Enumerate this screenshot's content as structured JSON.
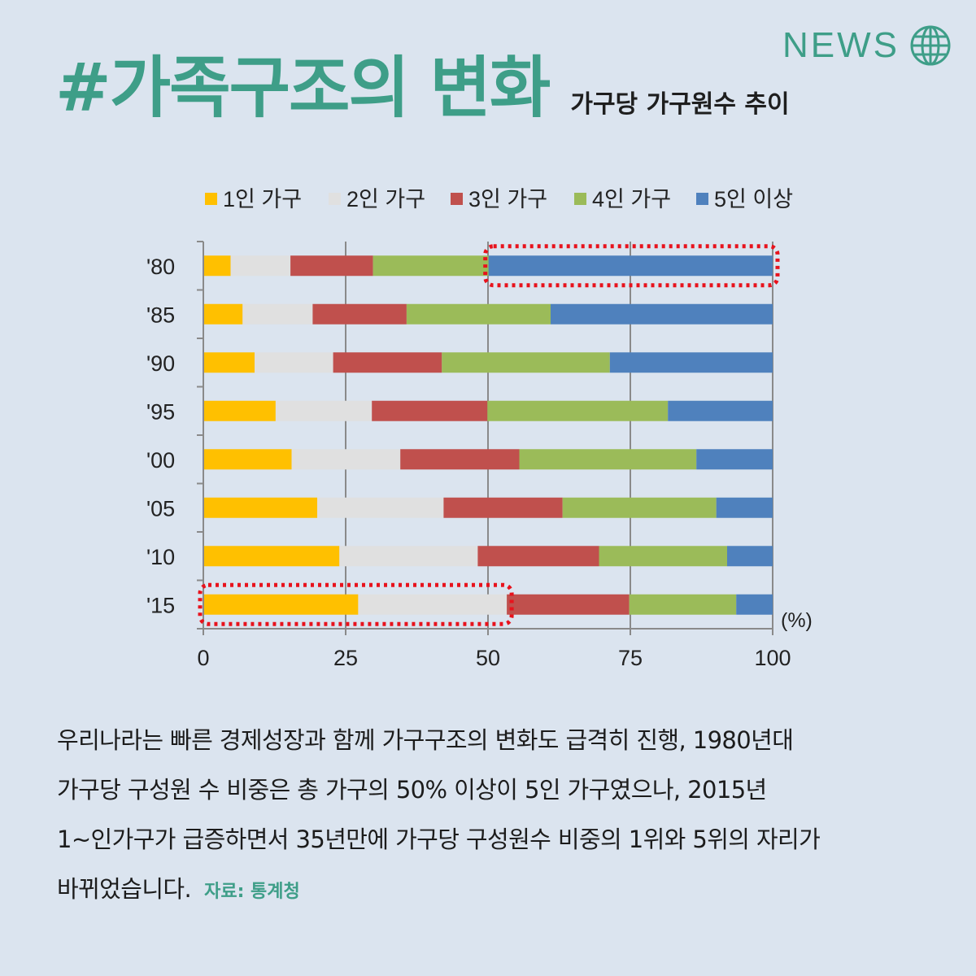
{
  "header": {
    "news_label": "NEWS",
    "news_icon": "globe-icon",
    "title": "#가족구조의 변화",
    "subtitle": "가구당 가구원수 추이"
  },
  "colors": {
    "accent": "#3e9e88",
    "background": "#dbe4ef",
    "highlight": "#e8121c"
  },
  "chart_data": {
    "type": "bar",
    "orientation": "horizontal",
    "stacked": true,
    "categories": [
      "'80",
      "'85",
      "'90",
      "'95",
      "'00",
      "'05",
      "'10",
      "'15"
    ],
    "series": [
      {
        "name": "1인 가구",
        "color": "#ffc000",
        "values": [
          4.8,
          6.9,
          9.0,
          12.7,
          15.5,
          20.0,
          23.9,
          27.2
        ]
      },
      {
        "name": "2인 가구",
        "color": "#e0e0e0",
        "values": [
          10.5,
          12.3,
          13.8,
          16.9,
          19.1,
          22.2,
          24.3,
          26.1
        ]
      },
      {
        "name": "3인 가구",
        "color": "#c0504d",
        "values": [
          14.5,
          16.5,
          19.1,
          20.3,
          20.9,
          20.9,
          21.3,
          21.5
        ]
      },
      {
        "name": "4인 가구",
        "color": "#9bbb59",
        "values": [
          20.3,
          25.3,
          29.5,
          31.7,
          31.1,
          27.0,
          22.5,
          18.8
        ]
      },
      {
        "name": "5인 이상",
        "color": "#4f81bd",
        "values": [
          49.9,
          39.0,
          28.6,
          18.4,
          13.4,
          9.9,
          8.0,
          6.4
        ]
      }
    ],
    "xlim": [
      0,
      100
    ],
    "x_ticks": [
      "0",
      "25",
      "50",
      "75",
      "100"
    ],
    "x_unit": "(%)",
    "grid": true,
    "legend": "top",
    "highlights": [
      {
        "category": "'80",
        "series": [
          "5인 이상"
        ]
      },
      {
        "category": "'15",
        "series": [
          "1인 가구",
          "2인 가구"
        ]
      }
    ]
  },
  "caption": {
    "lines": [
      "우리나라는 빠른 경제성장과 함께 가구구조의 변화도 급격히 진행, 1980년대",
      "가구당 구성원 수 비중은 총 가구의 50% 이상이 5인 가구였으나, 2015년",
      "1~인가구가 급증하면서 35년만에 가구당 구성원수 비중의 1위와 5위의 자리가",
      "바뀌었습니다."
    ],
    "source": "자료: 통계청"
  }
}
